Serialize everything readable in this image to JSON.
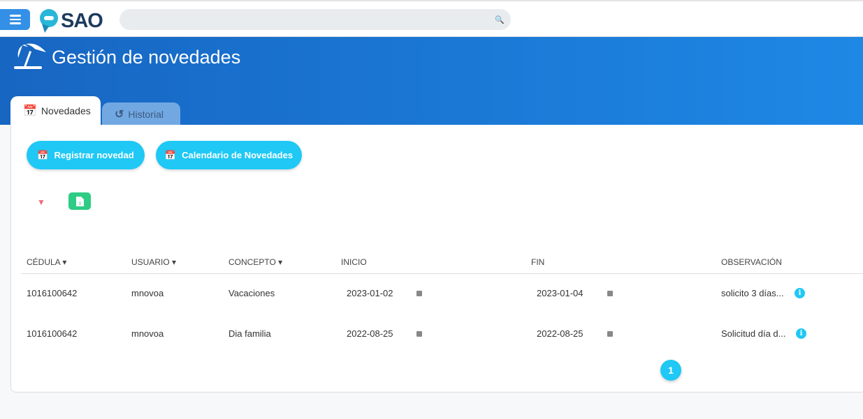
{
  "app": {
    "logo": "SAO",
    "search_placeholder": ""
  },
  "page": {
    "title": "Gestión de novedades"
  },
  "tabs": [
    {
      "label": "Novedades",
      "active": true
    },
    {
      "label": "Historial",
      "active": false
    }
  ],
  "actions": {
    "register": "Registrar novedad",
    "calendar": "Calendario de Novedades",
    "excel": "X"
  },
  "colors": {
    "accent": "#1fc8f5",
    "header": "#1766c2",
    "excel": "#2ecc85"
  },
  "table": {
    "columns": [
      "CÉDULA",
      "USUARIO",
      "CONCEPTO",
      "INICIO",
      "FIN",
      "OBSERVACIÓN"
    ],
    "rows": [
      {
        "cedula": "1016100642",
        "usuario": "mnovoa",
        "concepto": "Vacaciones",
        "inicio": "2023-01-02",
        "fin": "2023-01-04",
        "observacion": "solicito 3 días..."
      },
      {
        "cedula": "1016100642",
        "usuario": "mnovoa",
        "concepto": "Dia familia",
        "inicio": "2022-08-25",
        "fin": "2022-08-25",
        "observacion": "Solicitud día d..."
      }
    ]
  },
  "pagination": {
    "current": "1"
  }
}
